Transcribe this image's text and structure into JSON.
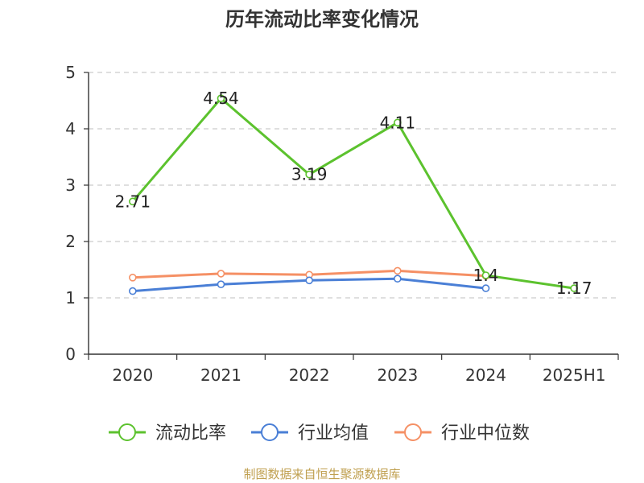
{
  "chart_data": {
    "type": "line",
    "title": "历年流动比率变化情况",
    "categories": [
      "2020",
      "2021",
      "2022",
      "2023",
      "2024",
      "2025H1"
    ],
    "ylim": [
      0,
      5
    ],
    "yticks": [
      "0",
      "1",
      "2",
      "3",
      "4",
      "5"
    ],
    "grid": true,
    "legend_position": "bottom",
    "series": [
      {
        "name": "流动比率",
        "color": "#5cc22e",
        "values": [
          2.71,
          4.54,
          3.19,
          4.11,
          1.4,
          1.17
        ],
        "labels": [
          "2.71",
          "4.54",
          "3.19",
          "4.11",
          "1.4",
          "1.17"
        ]
      },
      {
        "name": "行业均值",
        "color": "#4a7fd6",
        "values": [
          1.12,
          1.24,
          1.31,
          1.34,
          1.17,
          null
        ]
      },
      {
        "name": "行业中位数",
        "color": "#f59065",
        "values": [
          1.36,
          1.43,
          1.41,
          1.48,
          1.39,
          null
        ]
      }
    ]
  },
  "source_text": "制图数据来自恒生聚源数据库"
}
